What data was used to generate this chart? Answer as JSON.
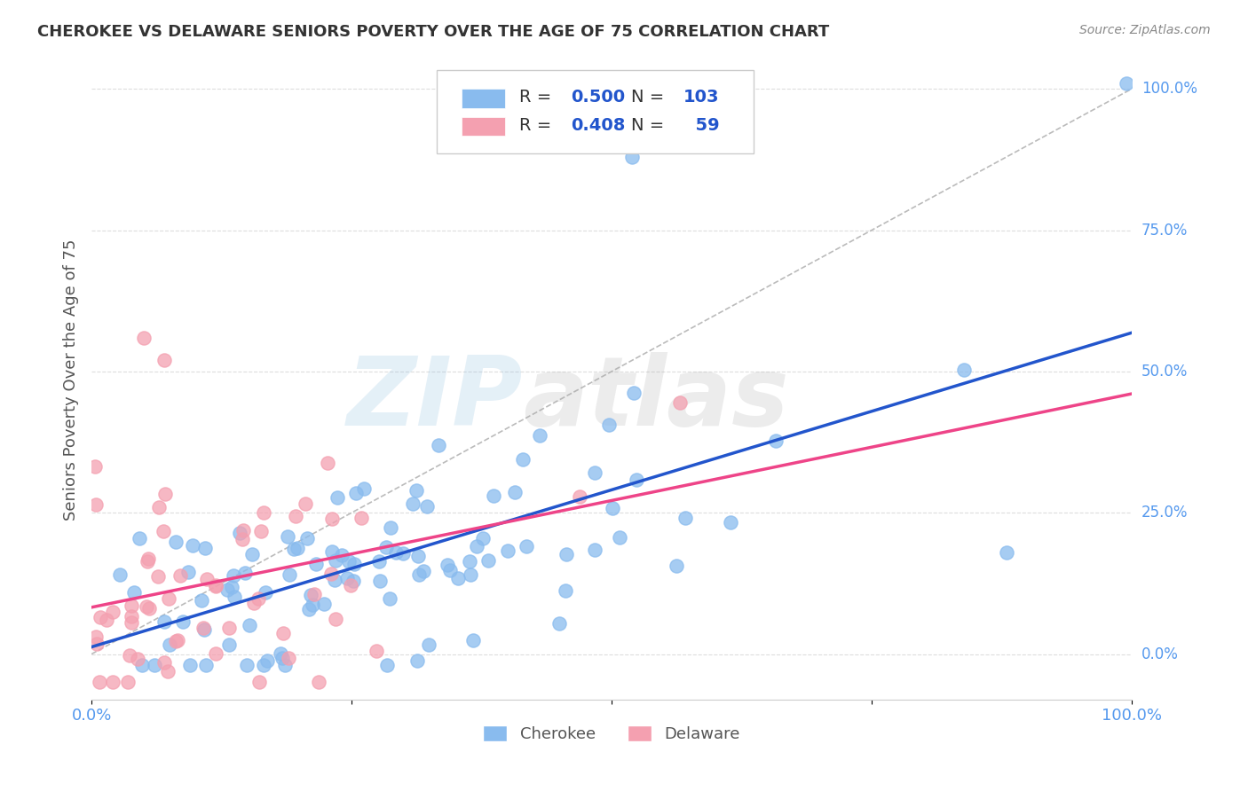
{
  "title": "CHEROKEE VS DELAWARE SENIORS POVERTY OVER THE AGE OF 75 CORRELATION CHART",
  "source": "Source: ZipAtlas.com",
  "ylabel": "Seniors Poverty Over the Age of 75",
  "cherokee_R": 0.5,
  "cherokee_N": 103,
  "delaware_R": 0.408,
  "delaware_N": 59,
  "cherokee_color": "#89BBEE",
  "delaware_color": "#F4A0B0",
  "cherokee_line_color": "#2255CC",
  "delaware_line_color": "#EE4488",
  "ref_line_color": "#BBBBBB",
  "watermark_zip": "ZIP",
  "watermark_atlas": "atlas",
  "background_color": "#FFFFFF",
  "grid_color": "#DDDDDD",
  "axis_label_color": "#5599EE",
  "title_color": "#333333",
  "xlim": [
    0.0,
    1.0
  ],
  "ylim_min": -0.08,
  "ylim_max": 1.05,
  "cherokee_seed": 42,
  "delaware_seed": 7,
  "figsize": [
    14.06,
    8.92
  ],
  "dpi": 100
}
